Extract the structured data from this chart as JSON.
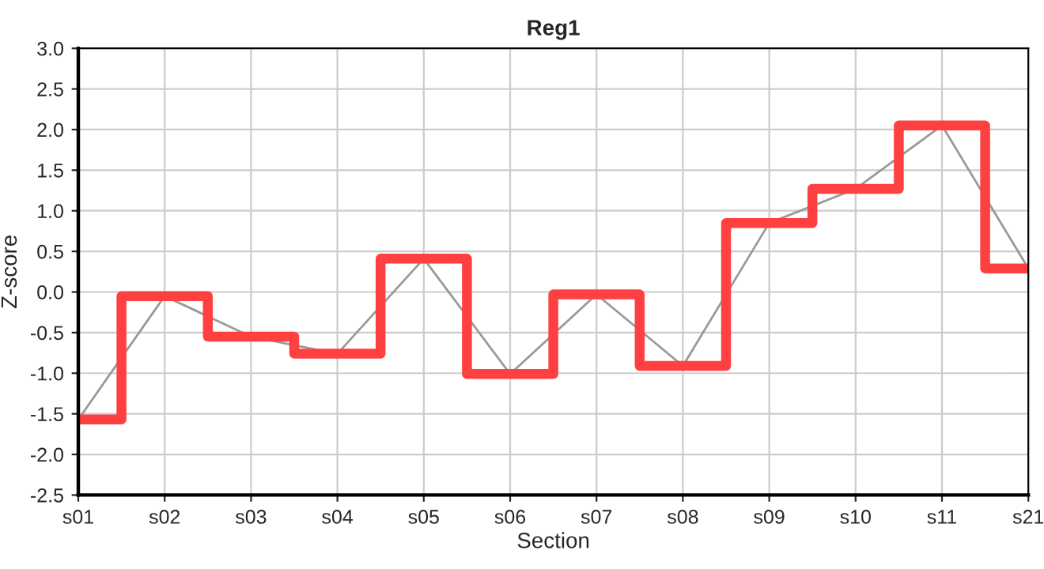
{
  "chart_data": {
    "type": "line",
    "title": "Reg1",
    "xlabel": "Section",
    "ylabel": "Z-score",
    "categories": [
      "s01",
      "s02",
      "s03",
      "s04",
      "s05",
      "s06",
      "s07",
      "s08",
      "s09",
      "s10",
      "s11",
      "s21"
    ],
    "series": [
      {
        "color": "#999999",
        "values": [
          -1.57,
          -0.05,
          -0.55,
          -0.76,
          0.41,
          -1.01,
          -0.03,
          -0.91,
          0.85,
          1.27,
          2.05,
          0.29
        ]
      },
      {
        "type": "step",
        "color": "#ff4040",
        "values": [
          -1.57,
          -0.05,
          -0.55,
          -0.76,
          0.41,
          -1.01,
          -0.03,
          -0.91,
          0.85,
          1.27,
          2.05,
          0.29
        ]
      }
    ],
    "ylim": [
      -2.5,
      3.0
    ],
    "yticks": [
      {
        "value": -2.5,
        "label": "-2.5"
      },
      {
        "value": -2.0,
        "label": "-2.0"
      },
      {
        "value": -1.5,
        "label": "-1.5"
      },
      {
        "value": -1.0,
        "label": "-1.0"
      },
      {
        "value": -0.5,
        "label": "-0.5"
      },
      {
        "value": 0.0,
        "label": "0.0"
      },
      {
        "value": 0.5,
        "label": "0.5"
      },
      {
        "value": 1.0,
        "label": "1.0"
      },
      {
        "value": 1.5,
        "label": "1.5"
      },
      {
        "value": 2.0,
        "label": "2.0"
      },
      {
        "value": 2.5,
        "label": "2.5"
      },
      {
        "value": 3.0,
        "label": "3.0"
      }
    ],
    "grid": true,
    "marker": "none",
    "line_style": "solid"
  }
}
